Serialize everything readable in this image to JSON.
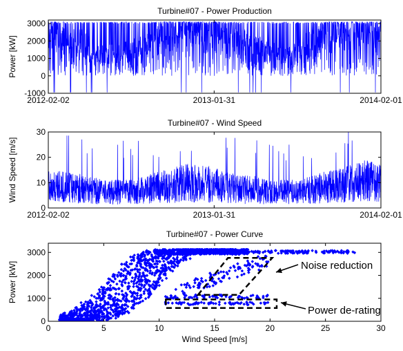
{
  "colors": {
    "series": "#0000ff",
    "axes": "#000000",
    "annotation": "#000000"
  },
  "chart_data": [
    {
      "type": "line",
      "title": "Turbine#07 - Power Production",
      "xlabel": "",
      "ylabel": "Power [kW]",
      "xlim": [
        "2012-02-02",
        "2014-02-01"
      ],
      "x_ticks": [
        "2012-02-02",
        "2013-01-31",
        "2014-02-01"
      ],
      "ylim": [
        -1000,
        3200
      ],
      "y_ticks": [
        -1000,
        0,
        1000,
        2000,
        3000
      ],
      "series": [
        {
          "x": [
            "2012-02-02",
            "2012-03-01",
            "2012-04-01",
            "2012-05-01",
            "2012-06-01",
            "2012-07-01",
            "2012-08-01",
            "2012-09-01",
            "2012-10-01",
            "2012-11-01",
            "2012-12-01",
            "2013-01-01",
            "2013-01-31",
            "2013-03-01",
            "2013-04-01",
            "2013-05-01",
            "2013-06-01",
            "2013-07-01",
            "2013-08-01",
            "2013-09-01",
            "2013-10-01",
            "2013-11-01",
            "2013-12-01",
            "2014-01-01",
            "2014-02-01"
          ],
          "y": [
            2800,
            2600,
            2200,
            1500,
            1200,
            1300,
            1400,
            1800,
            2500,
            2900,
            3000,
            2900,
            2800,
            2400,
            2200,
            1600,
            1400,
            1200,
            1300,
            1900,
            2500,
            2700,
            2900,
            3000,
            3000
          ]
        }
      ]
    },
    {
      "type": "line",
      "title": "Turbine#07 - Wind Speed",
      "xlabel": "",
      "ylabel": "Wind Speed [m/s]",
      "xlim": [
        "2012-02-02",
        "2014-02-01"
      ],
      "x_ticks": [
        "2012-02-02",
        "2013-01-31",
        "2014-02-01"
      ],
      "ylim": [
        0,
        30
      ],
      "y_ticks": [
        0,
        10,
        20,
        30
      ],
      "series": [
        {
          "x": [
            "2012-02-02",
            "2012-03-01",
            "2012-04-01",
            "2012-05-01",
            "2012-06-01",
            "2012-07-01",
            "2012-08-01",
            "2012-09-01",
            "2012-10-01",
            "2012-11-01",
            "2012-12-01",
            "2013-01-01",
            "2013-01-31",
            "2013-03-01",
            "2013-04-01",
            "2013-05-01",
            "2013-06-01",
            "2013-07-01",
            "2013-08-01",
            "2013-09-01",
            "2013-10-01",
            "2013-11-01",
            "2013-12-01",
            "2014-01-01",
            "2014-02-01"
          ],
          "y": [
            10,
            9,
            9,
            8,
            7,
            7,
            7,
            8,
            9,
            10,
            11,
            11,
            10,
            9,
            8,
            8,
            7,
            7,
            7,
            8,
            9,
            10,
            11,
            12,
            11
          ]
        }
      ]
    },
    {
      "type": "scatter",
      "title": "Turbine#07 - Power Curve",
      "xlabel": "Wind Speed [m/s]",
      "ylabel": "Power [kW]",
      "xlim": [
        0,
        30
      ],
      "x_ticks": [
        0,
        5,
        10,
        15,
        20,
        25,
        30
      ],
      "ylim": [
        0,
        3400
      ],
      "y_ticks": [
        0,
        1000,
        2000,
        3000
      ],
      "series": [
        {
          "x": [
            1,
            2,
            3,
            4,
            5,
            6,
            7,
            8,
            9,
            10,
            11,
            12,
            13,
            14,
            15,
            16,
            18,
            20,
            22,
            24,
            26,
            27.5
          ],
          "y": [
            0,
            30,
            120,
            300,
            550,
            900,
            1350,
            1850,
            2350,
            2750,
            2980,
            3050,
            3060,
            3060,
            3050,
            3050,
            3040,
            3030,
            3020,
            3010,
            3000,
            2990
          ]
        }
      ],
      "annotations": [
        {
          "text": "Noise reduction"
        },
        {
          "text": "Power de-rating"
        }
      ]
    }
  ]
}
